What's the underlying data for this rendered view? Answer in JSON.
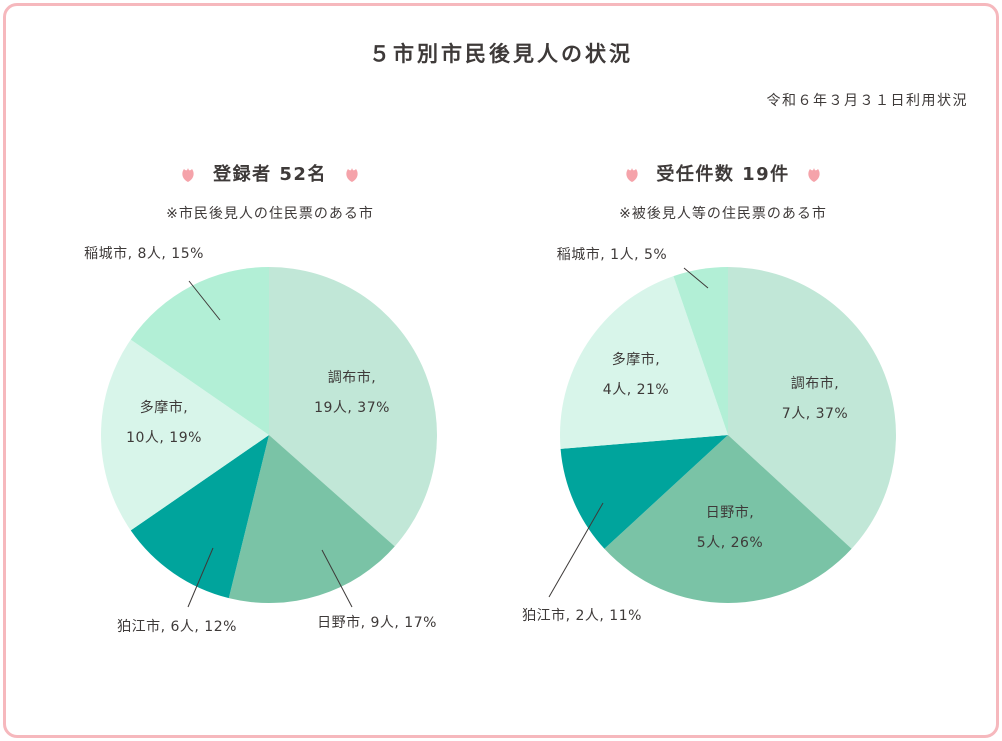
{
  "title": "５市別市民後見人の状況",
  "date_note": "令和６年３月３１日利用状況",
  "colors": {
    "border": "#f6b8bd",
    "petal": "#f5a3aa",
    "leader": "#3e3a39"
  },
  "chart_data": [
    {
      "type": "pie",
      "title": "登録者 52名",
      "subtitle": "※市民後見人の住民票のある市",
      "slices": [
        {
          "label": "調布市",
          "count_label": "19人",
          "percent": 37,
          "value": 19,
          "color": "#c1e7d7"
        },
        {
          "label": "日野市",
          "count_label": "9人",
          "percent": 17,
          "value": 9,
          "color": "#7ac3a6"
        },
        {
          "label": "狛江市",
          "count_label": "6人",
          "percent": 12,
          "value": 6,
          "color": "#00a49c"
        },
        {
          "label": "多摩市",
          "count_label": "10人",
          "percent": 19,
          "value": 10,
          "color": "#d8f5ea"
        },
        {
          "label": "稲城市",
          "count_label": "8人",
          "percent": 15,
          "value": 8,
          "color": "#b2efd6"
        }
      ]
    },
    {
      "type": "pie",
      "title": "受任件数 19件",
      "subtitle": "※被後見人等の住民票のある市",
      "slices": [
        {
          "label": "調布市",
          "count_label": "7人",
          "percent": 37,
          "value": 7,
          "color": "#c1e7d7"
        },
        {
          "label": "日野市",
          "count_label": "5人",
          "percent": 26,
          "value": 5,
          "color": "#7ac3a6"
        },
        {
          "label": "狛江市",
          "count_label": "2人",
          "percent": 11,
          "value": 2,
          "color": "#00a49c"
        },
        {
          "label": "多摩市",
          "count_label": "4人",
          "percent": 21,
          "value": 4,
          "color": "#d8f5ea"
        },
        {
          "label": "稲城市",
          "count_label": "1人",
          "percent": 5,
          "value": 1,
          "color": "#b2efd6"
        }
      ]
    }
  ]
}
